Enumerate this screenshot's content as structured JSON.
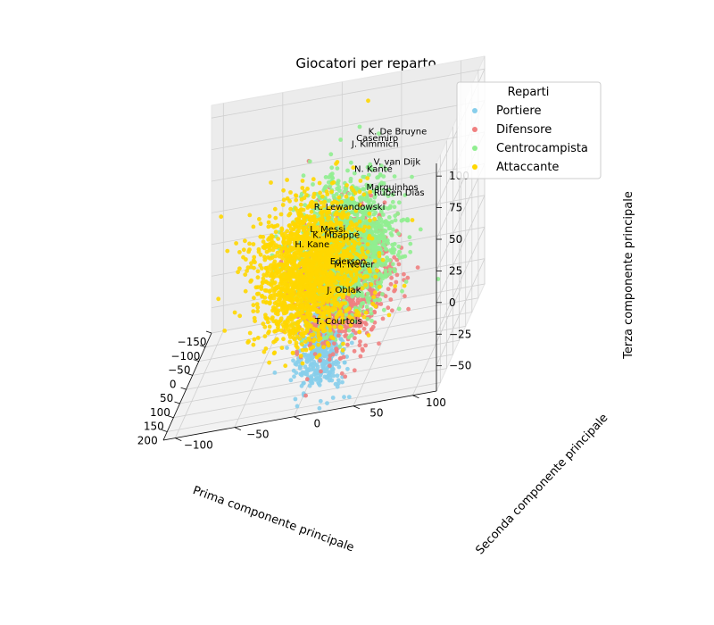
{
  "chart_data": {
    "type": "scatter",
    "title": "Giocatori per reparto",
    "xlabel": "Prima componente principale",
    "ylabel": "Seconda componente principale",
    "zlabel": "Terza componente principale",
    "x_ticks": [
      -150,
      -100,
      -50,
      0,
      50,
      100,
      150,
      200
    ],
    "y_ticks": [
      -100,
      -50,
      0,
      50,
      100
    ],
    "z_ticks": [
      -50,
      -25,
      0,
      25,
      50,
      75,
      100
    ],
    "xlim": [
      -150,
      230
    ],
    "ylim": [
      -110,
      120
    ],
    "zlim": [
      -70,
      110
    ],
    "legend": {
      "title": "Reparti",
      "placement": "top-right",
      "entries": [
        "Portiere",
        "Difensore",
        "Centrocampista",
        "Attaccante"
      ]
    },
    "series": [
      {
        "name": "Portiere",
        "color": "#87ceeb",
        "center": [
          200,
          20,
          -25
        ],
        "spread": [
          14,
          10,
          18
        ]
      },
      {
        "name": "Difensore",
        "color": "#f08080",
        "center": [
          80,
          25,
          0
        ],
        "spread": [
          32,
          18,
          24
        ]
      },
      {
        "name": "Centrocampista",
        "color": "#90ee90",
        "center": [
          10,
          20,
          10
        ],
        "spread": [
          38,
          20,
          24
        ]
      },
      {
        "name": "Attaccante",
        "color": "#ffd700",
        "center": [
          -35,
          -15,
          -10
        ],
        "spread": [
          38,
          22,
          26
        ]
      }
    ],
    "annotations": [
      {
        "text": "Casemiro",
        "x": 20,
        "y": 30,
        "z": 96
      },
      {
        "text": "V. van Dijk",
        "x": 70,
        "y": 50,
        "z": 85
      },
      {
        "text": "J. Kimmich",
        "x": 10,
        "y": 25,
        "z": 90
      },
      {
        "text": "Rúben Dias",
        "x": 115,
        "y": 55,
        "z": 70
      },
      {
        "text": "Marquinhos",
        "x": 80,
        "y": 45,
        "z": 68
      },
      {
        "text": "N. Kanté",
        "x": 35,
        "y": 30,
        "z": 75
      },
      {
        "text": "K. De Bruyne",
        "x": -75,
        "y": 30,
        "z": 80
      },
      {
        "text": "M. Neuer",
        "x": 195,
        "y": 30,
        "z": 35
      },
      {
        "text": "Ederson",
        "x": 180,
        "y": 25,
        "z": 35
      },
      {
        "text": "J. Oblak",
        "x": 205,
        "y": 25,
        "z": 18
      },
      {
        "text": "T. Courtois",
        "x": 205,
        "y": 15,
        "z": -5
      },
      {
        "text": "R. Lewandowski",
        "x": -115,
        "y": -20,
        "z": 20
      },
      {
        "text": "L. Messi",
        "x": -130,
        "y": -25,
        "z": 0
      },
      {
        "text": "K. Mbappé",
        "x": -105,
        "y": -20,
        "z": 0
      },
      {
        "text": "H. Kane",
        "x": -105,
        "y": -35,
        "z": -5
      }
    ]
  }
}
